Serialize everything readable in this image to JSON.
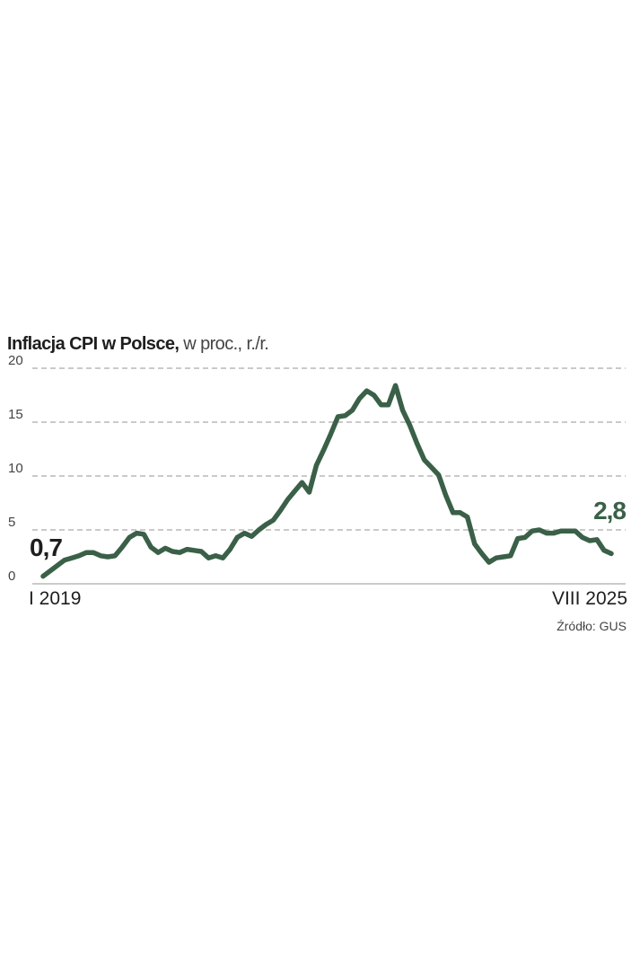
{
  "chart_data": {
    "type": "line",
    "title": "Inflacja CPI w Polsce,",
    "subtitle": "w proc., r./r.",
    "xlabel": "",
    "ylabel": "",
    "ylim": [
      0,
      20
    ],
    "yticks": [
      "0",
      "5",
      "10",
      "15",
      "20"
    ],
    "grid": true,
    "x_range": [
      "I 2019",
      "VIII 2025"
    ],
    "x_tick_labels": {
      "first": "I 2019",
      "last": "VIII 2025"
    },
    "start_label": "0,7",
    "end_label": "2,8",
    "source": "Źródło: GUS",
    "line_color": "#3a6048",
    "start_label_color": "#1e1e1e",
    "end_label_color": "#3a6048",
    "grid_color": "#aaaaaa",
    "series": [
      {
        "name": "Inflacja CPI",
        "values": [
          0.7,
          1.2,
          1.7,
          2.2,
          2.4,
          2.6,
          2.9,
          2.9,
          2.6,
          2.5,
          2.6,
          3.4,
          4.3,
          4.7,
          4.6,
          3.4,
          2.9,
          3.3,
          3.0,
          2.9,
          3.2,
          3.1,
          3.0,
          2.4,
          2.6,
          2.4,
          3.2,
          4.3,
          4.7,
          4.4,
          5.0,
          5.5,
          5.9,
          6.8,
          7.8,
          8.6,
          9.4,
          8.5,
          11.0,
          12.4,
          13.9,
          15.5,
          15.6,
          16.1,
          17.2,
          17.9,
          17.5,
          16.6,
          16.6,
          18.4,
          16.1,
          14.7,
          13.0,
          11.5,
          10.8,
          10.1,
          8.2,
          6.6,
          6.6,
          6.2,
          3.7,
          2.8,
          2.0,
          2.4,
          2.5,
          2.6,
          4.2,
          4.3,
          4.9,
          5.0,
          4.7,
          4.7,
          4.9,
          4.9,
          4.9,
          4.3,
          4.0,
          4.1,
          3.1,
          2.8
        ]
      }
    ]
  }
}
